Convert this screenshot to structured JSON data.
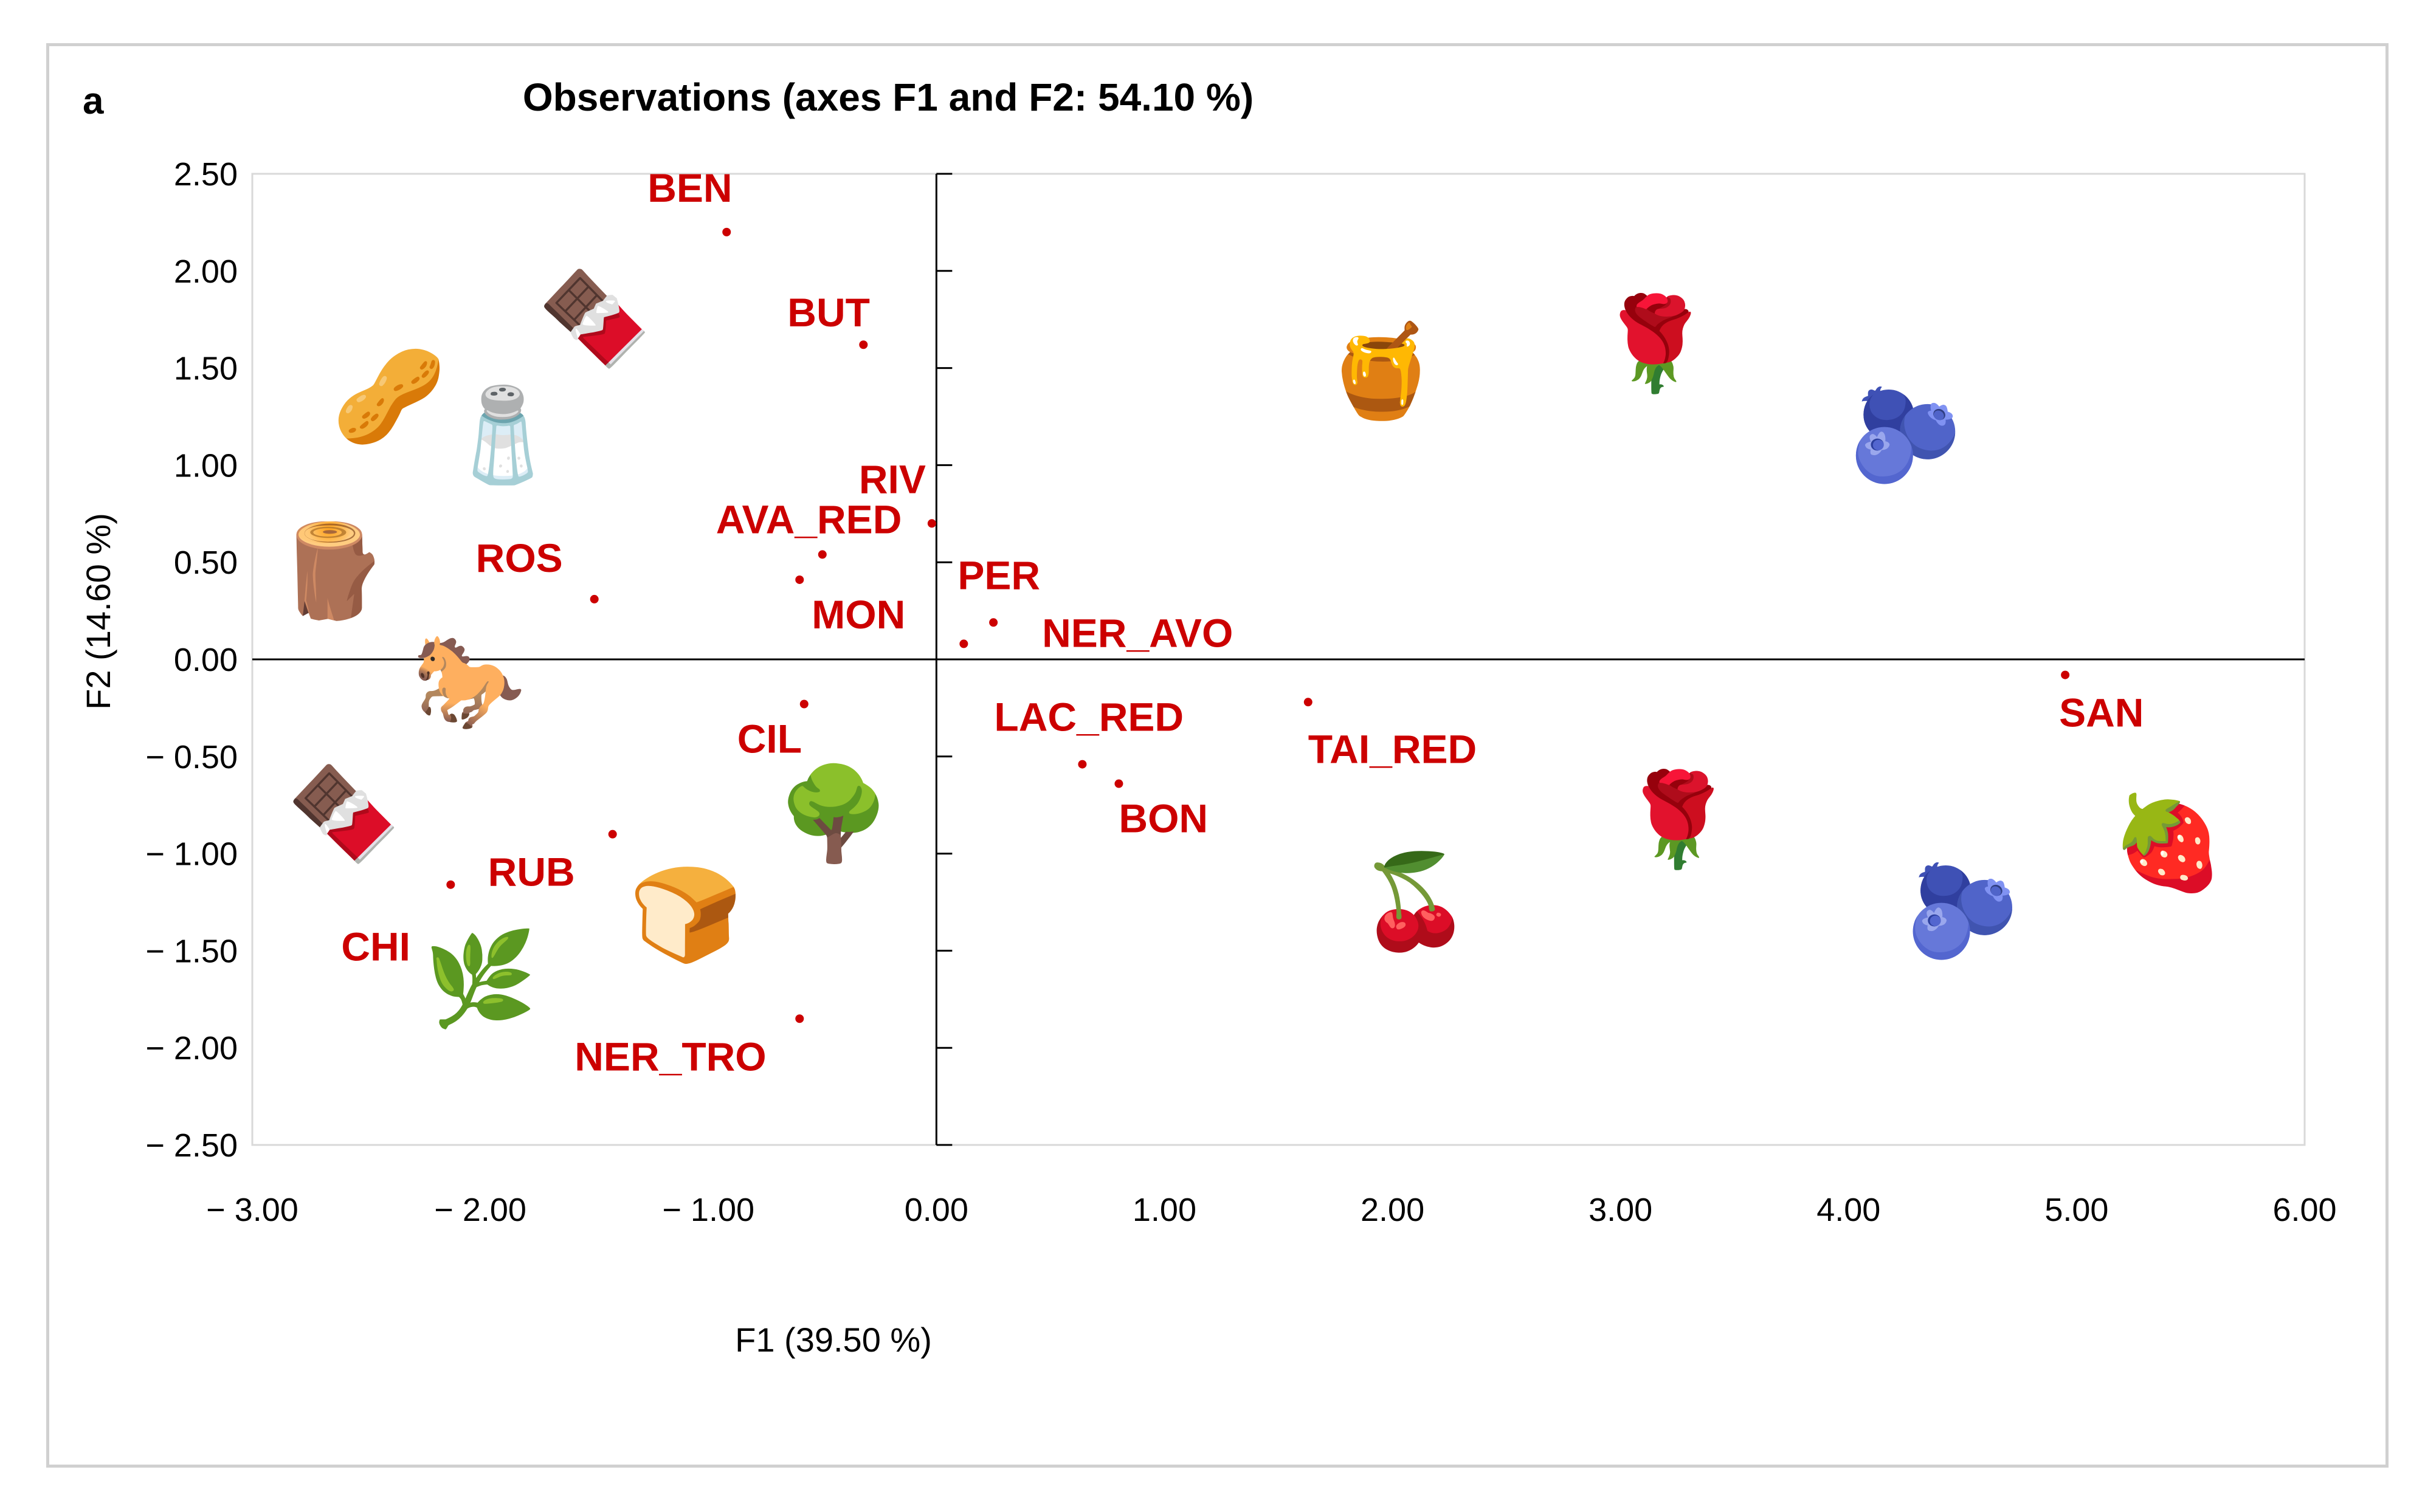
{
  "panel_label": "a",
  "chart_data": {
    "type": "scatter",
    "title": "Observations (axes F1 and F2: 54.10 %)",
    "xlabel": "F1 (39.50 %)",
    "ylabel": "F2 (14.60 %)",
    "xlim": [
      -3.0,
      6.0
    ],
    "ylim": [
      -2.5,
      2.5
    ],
    "grid": false,
    "x_ticks": [
      -3.0,
      -2.0,
      -1.0,
      0.0,
      1.0,
      2.0,
      3.0,
      4.0,
      5.0,
      6.0
    ],
    "x_tick_labels": [
      "− 3.00",
      "− 2.00",
      "− 1.00",
      "0.00",
      "1.00",
      "2.00",
      "3.00",
      "4.00",
      "5.00",
      "6.00"
    ],
    "y_ticks": [
      2.5,
      2.0,
      1.5,
      1.0,
      0.5,
      0.0,
      -0.5,
      -1.0,
      -1.5,
      -2.0,
      -2.5
    ],
    "y_tick_labels": [
      "2.50",
      "2.00",
      "1.50",
      "1.00",
      "0.50",
      "0.00",
      "− 0.50",
      "− 1.00",
      "− 1.50",
      "− 2.00",
      "− 2.50"
    ],
    "point_color": "#cc0000",
    "points": [
      {
        "label": "BEN",
        "x": -0.92,
        "y": 2.2
      },
      {
        "label": "BUT",
        "x": -0.32,
        "y": 1.62
      },
      {
        "label": "RIV",
        "x": -0.02,
        "y": 0.7
      },
      {
        "label": "AVA_RED",
        "x": -0.5,
        "y": 0.54
      },
      {
        "label": "MON",
        "x": -0.6,
        "y": 0.41
      },
      {
        "label": "ROS",
        "x": -1.5,
        "y": 0.31
      },
      {
        "label": "PER",
        "x": 0.12,
        "y": 0.08
      },
      {
        "label": "NER_AVO",
        "x": 0.25,
        "y": 0.19
      },
      {
        "label": "CIL",
        "x": -0.58,
        "y": -0.23
      },
      {
        "label": "LAC_RED",
        "x": 0.64,
        "y": -0.54
      },
      {
        "label": "BON",
        "x": 0.8,
        "y": -0.64
      },
      {
        "label": "TAI_RED",
        "x": 1.63,
        "y": -0.22
      },
      {
        "label": "SAN",
        "x": 4.95,
        "y": -0.08
      },
      {
        "label": "RUB",
        "x": -1.42,
        "y": -0.9
      },
      {
        "label": "CHI",
        "x": -2.13,
        "y": -1.16
      },
      {
        "label": "NER_TRO",
        "x": -0.6,
        "y": -1.85
      }
    ],
    "icons": [
      {
        "name": "chocolate-icon",
        "glyph": "🍫",
        "x": -1.5,
        "y": 1.75
      },
      {
        "name": "almond-icon",
        "glyph": "🥜",
        "x": -2.4,
        "y": 1.35
      },
      {
        "name": "pepper-shaker-icon",
        "glyph": "🧂",
        "x": -1.9,
        "y": 1.15
      },
      {
        "name": "clove-icon",
        "glyph": "🪵",
        "x": -2.65,
        "y": 0.45
      },
      {
        "name": "horse-icon",
        "glyph": "🐎",
        "x": -2.05,
        "y": -0.12
      },
      {
        "name": "chocolate-icon-2",
        "glyph": "🍫",
        "x": -2.6,
        "y": -0.8
      },
      {
        "name": "tree-icon",
        "glyph": "🌳",
        "x": -0.45,
        "y": -0.8
      },
      {
        "name": "bread-icon",
        "glyph": "🍞",
        "x": -1.1,
        "y": -1.32
      },
      {
        "name": "herb-icon",
        "glyph": "🌿",
        "x": -2.0,
        "y": -1.65
      },
      {
        "name": "honey-icon",
        "glyph": "🍯",
        "x": 1.95,
        "y": 1.48
      },
      {
        "name": "rose-icon",
        "glyph": "🌹",
        "x": 3.15,
        "y": 1.62
      },
      {
        "name": "blueberry-icon",
        "glyph": "🫐",
        "x": 4.25,
        "y": 1.15
      },
      {
        "name": "cherry-icon",
        "glyph": "🍒",
        "x": 2.1,
        "y": -1.25
      },
      {
        "name": "rose-icon-2",
        "glyph": "🌹",
        "x": 3.25,
        "y": -0.83
      },
      {
        "name": "blueberry-icon-2",
        "glyph": "🫐",
        "x": 4.5,
        "y": -1.3
      },
      {
        "name": "jam-jar-icon",
        "glyph": "🍓",
        "x": 5.4,
        "y": -0.95
      }
    ]
  }
}
